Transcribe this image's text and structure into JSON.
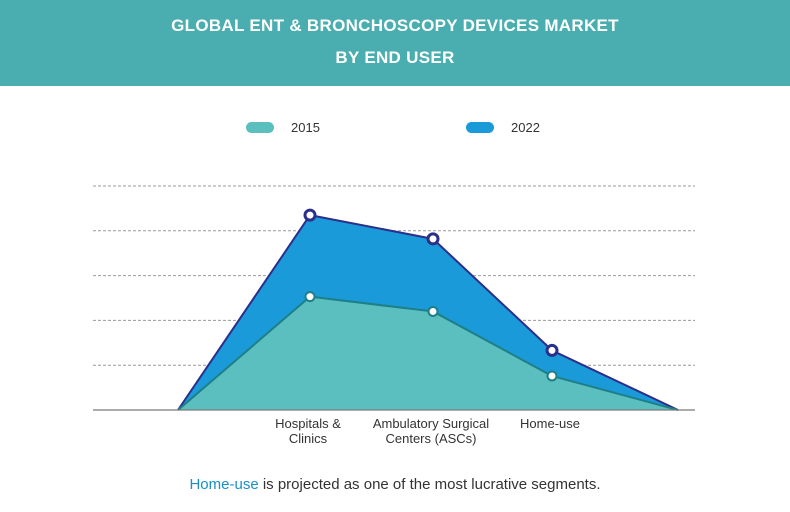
{
  "header": {
    "title_line1": "GLOBAL ENT & BRONCHOSCOPY DEVICES MARKET",
    "title_line2": "BY END USER"
  },
  "colors": {
    "header_bg": "#4aaeb0",
    "series_2015_fill": "#5bbfc0",
    "series_2022_fill": "#1a9ad9",
    "series_2015_line": "#1f7f86",
    "series_2022_line": "#2b2f8c",
    "highlight_text": "#1a8fc7"
  },
  "legend": [
    {
      "label": "2015",
      "color": "#5bbfc0"
    },
    {
      "label": "2022",
      "color": "#1a9ad9"
    }
  ],
  "chart_data": {
    "type": "area",
    "categories": [
      "",
      "Hospitals & Clinics",
      "Ambulatory Surgical Centers (ASCs)",
      "Home-use",
      ""
    ],
    "category_labels": [
      [],
      [
        "Hospitals &",
        "Clinics"
      ],
      [
        "Ambulatory Surgical",
        "Centers (ASCs)"
      ],
      [
        "Home-use"
      ],
      []
    ],
    "x": [
      0,
      1,
      2,
      3,
      4
    ],
    "series": [
      {
        "name": "2022",
        "values": [
          0,
          4.35,
          3.82,
          1.33,
          0
        ],
        "markers": [
          false,
          true,
          true,
          true,
          false
        ]
      },
      {
        "name": "2015",
        "values": [
          0,
          2.53,
          2.2,
          0.76,
          0
        ],
        "markers": [
          false,
          true,
          true,
          true,
          false
        ]
      }
    ],
    "ylim": [
      0,
      5
    ],
    "grid": true,
    "y_tick_labels": false,
    "legend_position": "top"
  },
  "footnote": {
    "highlight": "Home-use",
    "rest": " is projected as one of the most lucrative segments."
  }
}
